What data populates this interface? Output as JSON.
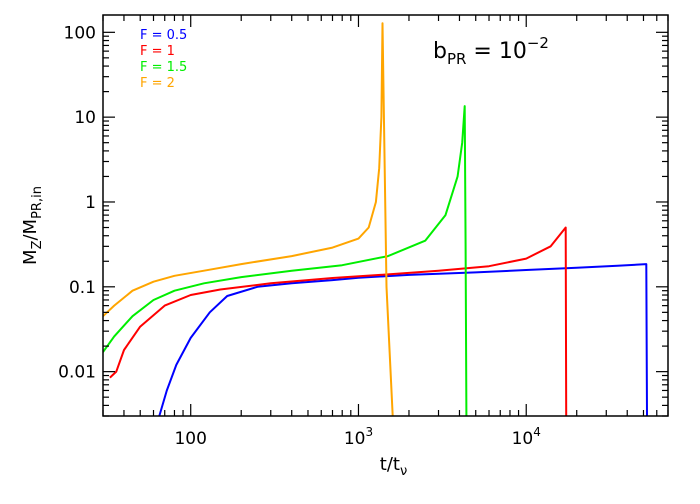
{
  "chart_data": {
    "type": "line",
    "xscale": "log",
    "yscale": "log",
    "xlim": [
      30,
      70000
    ],
    "ylim": [
      0.003,
      160
    ],
    "xlabel": {
      "main": "t/t",
      "sub": "ν"
    },
    "ylabel": {
      "num": "M",
      "num_sub": "Z",
      "den": "M",
      "den_sub": "PR,in"
    },
    "annotation": {
      "main": "b",
      "sub": "PR",
      "eq": " =  10",
      "sup": "−2",
      "position": "top-right"
    },
    "legend_position": "top-left",
    "x_ticks": [
      {
        "value": 100,
        "mant": "100",
        "exp": ""
      },
      {
        "value": 1000,
        "mant": "10",
        "exp": "3"
      },
      {
        "value": 10000,
        "mant": "10",
        "exp": "4"
      }
    ],
    "y_ticks": [
      {
        "value": 0.01,
        "label": "0.01"
      },
      {
        "value": 0.1,
        "label": "0.1"
      },
      {
        "value": 1,
        "label": "1"
      },
      {
        "value": 10,
        "label": "10"
      },
      {
        "value": 100,
        "label": "100"
      }
    ],
    "series": [
      {
        "name": "F = 0.5",
        "color": "#0000ff",
        "points": [
          [
            65,
            0.003
          ],
          [
            72,
            0.006
          ],
          [
            82,
            0.012
          ],
          [
            100,
            0.025
          ],
          [
            130,
            0.05
          ],
          [
            165,
            0.078
          ],
          [
            250,
            0.1
          ],
          [
            400,
            0.11
          ],
          [
            700,
            0.12
          ],
          [
            1000,
            0.128
          ],
          [
            2000,
            0.138
          ],
          [
            5000,
            0.148
          ],
          [
            10000,
            0.158
          ],
          [
            20000,
            0.168
          ],
          [
            35000,
            0.177
          ],
          [
            52000,
            0.185
          ],
          [
            52500,
            0.003
          ]
        ]
      },
      {
        "name": "F = 1",
        "color": "#ff0000",
        "points": [
          [
            33,
            0.0085
          ],
          [
            36,
            0.01
          ],
          [
            40,
            0.018
          ],
          [
            50,
            0.034
          ],
          [
            70,
            0.06
          ],
          [
            100,
            0.08
          ],
          [
            150,
            0.093
          ],
          [
            300,
            0.11
          ],
          [
            700,
            0.127
          ],
          [
            1500,
            0.14
          ],
          [
            3000,
            0.155
          ],
          [
            6000,
            0.175
          ],
          [
            10000,
            0.215
          ],
          [
            14000,
            0.3
          ],
          [
            17200,
            0.5
          ],
          [
            17300,
            0.003
          ]
        ]
      },
      {
        "name": "F = 1.5",
        "color": "#00ee00",
        "points": [
          [
            30,
            0.017
          ],
          [
            35,
            0.026
          ],
          [
            45,
            0.045
          ],
          [
            60,
            0.07
          ],
          [
            80,
            0.09
          ],
          [
            120,
            0.11
          ],
          [
            200,
            0.13
          ],
          [
            400,
            0.155
          ],
          [
            800,
            0.18
          ],
          [
            1500,
            0.23
          ],
          [
            2500,
            0.35
          ],
          [
            3300,
            0.7
          ],
          [
            3900,
            2.0
          ],
          [
            4150,
            5.0
          ],
          [
            4300,
            13.5
          ],
          [
            4350,
            0.3
          ],
          [
            4400,
            0.003
          ]
        ]
      },
      {
        "name": "F = 2",
        "color": "#ffa500",
        "points": [
          [
            30,
            0.045
          ],
          [
            35,
            0.06
          ],
          [
            45,
            0.09
          ],
          [
            60,
            0.115
          ],
          [
            80,
            0.135
          ],
          [
            120,
            0.155
          ],
          [
            200,
            0.185
          ],
          [
            400,
            0.23
          ],
          [
            700,
            0.29
          ],
          [
            1000,
            0.37
          ],
          [
            1150,
            0.5
          ],
          [
            1270,
            1.0
          ],
          [
            1330,
            2.5
          ],
          [
            1370,
            10
          ],
          [
            1390,
            128
          ],
          [
            1470,
            0.1
          ],
          [
            1600,
            0.003
          ]
        ]
      }
    ]
  }
}
